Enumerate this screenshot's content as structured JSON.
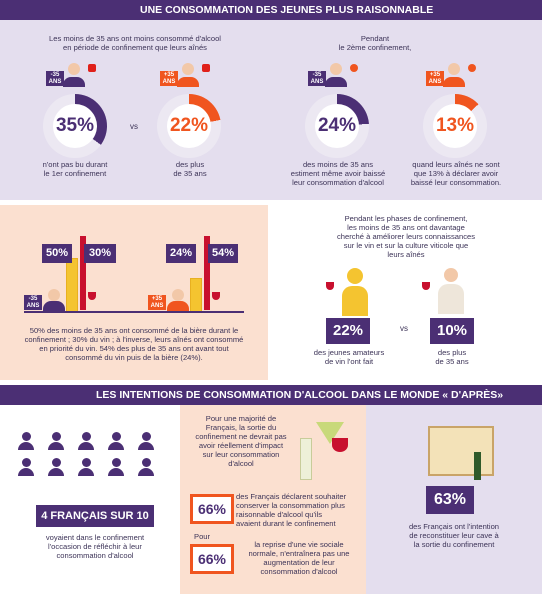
{
  "section1": {
    "banner": "UNE CONSOMMATION DES JEUNES PLUS RAISONNABLE",
    "intro_left_1": "Les moins de 35 ans ont moins consommé d'alcool",
    "intro_left_2": "en période de confinement que leurs aînés",
    "intro_right_1": "Pendant",
    "intro_right_2": "le 2ème confinement,",
    "vs": "vs",
    "stats": [
      {
        "badge": "-35 ANS",
        "value": "35%",
        "fraction": 0.35,
        "caption_1": "n'ont pas bu durant",
        "caption_2": "le 1er confinement",
        "caption_3": ""
      },
      {
        "badge": "+35 ANS",
        "value": "22%",
        "fraction": 0.22,
        "caption_1": "des plus",
        "caption_2": "de 35 ans",
        "caption_3": ""
      },
      {
        "badge": "-35 ANS",
        "value": "24%",
        "fraction": 0.24,
        "caption_1": "des moins de 35 ans",
        "caption_2": "estiment même avoir baissé",
        "caption_3": "leur consommation d'alcool"
      },
      {
        "badge": "+35 ANS",
        "value": "13%",
        "fraction": 0.13,
        "caption_1": "quand leurs aînés ne sont",
        "caption_2": "que 13% à déclarer avoir",
        "caption_3": "baissé leur consommation."
      }
    ]
  },
  "section2": {
    "left": {
      "group1": {
        "badge": "-35 ANS",
        "beer": "50%",
        "wine": "30%"
      },
      "group2": {
        "badge": "+35 ANS",
        "beer": "24%",
        "wine": "54%"
      },
      "text": [
        "50% des moins de 35 ans ont consommé de la bière durant le",
        "confinement ; 30% du vin ; à l'inverse, leurs aînés ont consommé",
        "en priorité du vin. 54% des plus de 35 ans ont avant tout",
        "consommé du vin puis de la bière (24%)."
      ]
    },
    "right": {
      "text": [
        "Pendant les phases de confinement,",
        "les moins de 35 ans ont davantage",
        "cherché à améliorer leurs connaissances",
        "sur le vin et sur la culture viticole que",
        "leurs aînés"
      ],
      "stat1": {
        "value": "22%",
        "caption_1": "des jeunes amateurs",
        "caption_2": "de vin l'ont fait"
      },
      "vs": "vs",
      "stat2": {
        "value": "10%",
        "caption_1": "des plus",
        "caption_2": "de 35 ans"
      }
    }
  },
  "section3": {
    "banner": "LES INTENTIONS DE CONSOMMATION D'ALCOOL DANS LE MONDE « D'APRÈS»",
    "col1": {
      "headline": "4 FRANÇAIS SUR 10",
      "text": [
        "voyaient dans le confinement",
        "l'occasion de réfléchir à leur",
        "consommation d'alcool"
      ]
    },
    "col2": {
      "text": [
        "Pour une majorité de",
        "Français, la sortie du",
        "confinement ne devrait pas",
        "avoir réellement d'impact",
        "sur leur consommation",
        "d'alcool"
      ],
      "stat1": {
        "value": "66%",
        "text": [
          "des Français déclarent souhaiter",
          "conserver la consommation plus",
          "raisonnable d'alcool qu'ils",
          "avaient durant le confinement"
        ]
      },
      "pour": "Pour",
      "stat2": {
        "value": "66%",
        "text": [
          "la reprise d'une vie sociale",
          "normale, n'entraînera pas une",
          "augmentation de leur",
          "consommation d'alcool"
        ]
      }
    },
    "col3": {
      "value": "63%",
      "text": [
        "des Français ont l'intention",
        "de reconstituer leur cave à",
        "la sortie du confinement"
      ]
    }
  },
  "colors": {
    "purple": "#4b2f74",
    "orange": "#f0551f",
    "lavender": "#e4deee",
    "peach": "#fbe0d0",
    "yellow": "#f4c430",
    "red": "#c8102e"
  }
}
